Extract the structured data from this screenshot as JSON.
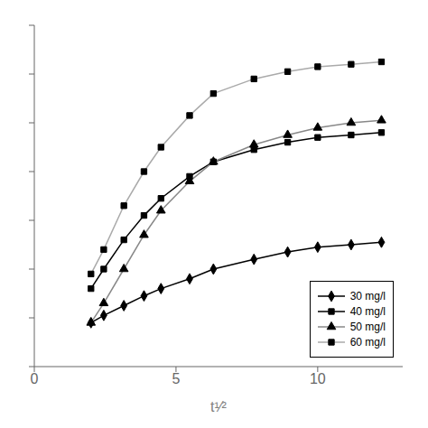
{
  "chart_data": {
    "type": "line",
    "xlabel": "t¹⁄²",
    "x": [
      2.0,
      2.45,
      3.16,
      3.87,
      4.47,
      5.48,
      6.32,
      7.75,
      8.94,
      10.0,
      11.18,
      12.25
    ],
    "xlim": [
      0,
      13
    ],
    "xticks": [
      0,
      5,
      10
    ],
    "ylim": [
      0,
      140
    ],
    "yticks": [
      0,
      20,
      40,
      60,
      80,
      100,
      120,
      140
    ],
    "tick_labels": "x",
    "grid": false,
    "legend": "lower right",
    "series": [
      {
        "name": "30 mg/l",
        "color": "#000000",
        "marker": "diamond",
        "values": [
          18,
          21,
          25,
          29,
          32,
          36,
          40,
          44,
          47,
          49,
          50,
          51
        ]
      },
      {
        "name": "40 mg/l",
        "color": "#000000",
        "marker": "square",
        "values": [
          32,
          40,
          52,
          62,
          69,
          78,
          84,
          89,
          92,
          94,
          95,
          96
        ]
      },
      {
        "name": "50 mg/l",
        "color": "#888888",
        "marker": "triangle",
        "values": [
          18,
          26,
          40,
          54,
          64,
          76,
          84,
          91,
          95,
          98,
          100,
          101
        ]
      },
      {
        "name": "60 mg/l",
        "color": "#aaaaaa",
        "marker": "square",
        "values": [
          38,
          48,
          66,
          80,
          90,
          103,
          112,
          118,
          121,
          123,
          124,
          125
        ]
      }
    ]
  }
}
